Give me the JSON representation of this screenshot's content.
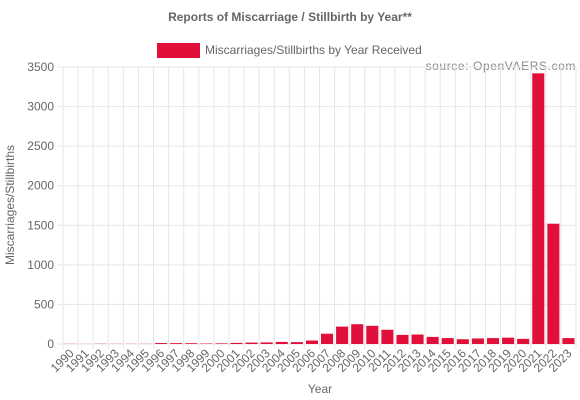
{
  "chart_data": {
    "type": "bar",
    "title": "Reports of Miscarriage / Stillbirth by Year**",
    "xlabel": "Year",
    "ylabel": "Miscarriages/Stillbirths",
    "source": "source: OpenVAERS.com",
    "legend_position": "top",
    "grid": true,
    "ylim": [
      0,
      3500
    ],
    "yticks": [
      0,
      500,
      1000,
      1500,
      2000,
      2500,
      3000,
      3500
    ],
    "color": "#e0103a",
    "categories": [
      "1990",
      "1991",
      "1992",
      "1993",
      "1994",
      "1995",
      "1996",
      "1997",
      "1998",
      "1999",
      "2000",
      "2001",
      "2002",
      "2003",
      "2004",
      "2005",
      "2006",
      "2007",
      "2008",
      "2009",
      "2010",
      "2011",
      "2012",
      "2013",
      "2014",
      "2015",
      "2016",
      "2017",
      "2018",
      "2019",
      "2020",
      "2021",
      "2022",
      "2023"
    ],
    "series": [
      {
        "name": "Miscarriages/Stillbirths by Year Received",
        "values": [
          2,
          1,
          3,
          2,
          2,
          2,
          12,
          11,
          10,
          6,
          8,
          14,
          18,
          20,
          26,
          24,
          44,
          130,
          220,
          250,
          230,
          180,
          115,
          120,
          90,
          75,
          60,
          70,
          75,
          80,
          65,
          3420,
          1520,
          75
        ]
      }
    ]
  }
}
